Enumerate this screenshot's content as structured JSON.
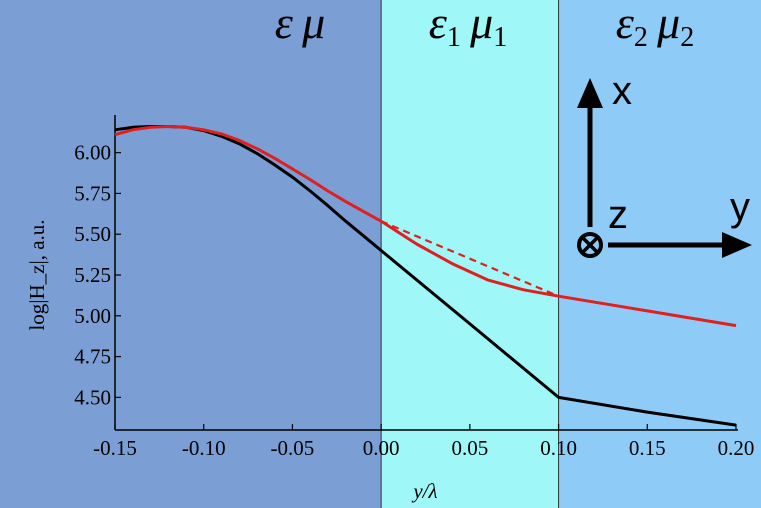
{
  "chart_data": {
    "type": "line",
    "xlabel": "y/λ",
    "ylabel": "log|H_z|, a.u.",
    "xlim": [
      -0.15,
      0.2
    ],
    "ylim": [
      4.3,
      6.2
    ],
    "x_ticks": [
      "-0.15",
      "-0.10",
      "-0.05",
      "0.00",
      "0.05",
      "0.10",
      "0.15",
      "0.20"
    ],
    "y_ticks": [
      "4.50",
      "4.75",
      "5.00",
      "5.25",
      "5.50",
      "5.75",
      "6.00"
    ],
    "regions": [
      {
        "x_from": -0.15,
        "x_to": 0.0,
        "label_main": "ε μ",
        "sub": "",
        "color": "#7b9ed4"
      },
      {
        "x_from": 0.0,
        "x_to": 0.1,
        "label_main": "ε μ",
        "sub": "1",
        "color": "#9ff7f7"
      },
      {
        "x_from": 0.1,
        "x_to": 0.2,
        "label_main": "ε μ",
        "sub": "2",
        "color": "#8ecbf7"
      }
    ],
    "series": [
      {
        "color": "#000000",
        "style": "solid",
        "x": [
          -0.15,
          -0.14,
          -0.13,
          -0.12,
          -0.11,
          -0.1,
          -0.09,
          -0.08,
          -0.07,
          -0.06,
          -0.05,
          -0.04,
          -0.03,
          -0.02,
          -0.01,
          0.0,
          0.05,
          0.1,
          0.15,
          0.2
        ],
        "y": [
          6.14,
          6.155,
          6.16,
          6.16,
          6.155,
          6.135,
          6.1,
          6.055,
          5.995,
          5.925,
          5.85,
          5.765,
          5.675,
          5.58,
          5.49,
          5.4,
          4.95,
          4.5,
          4.41,
          4.33
        ]
      },
      {
        "color": "#e02020",
        "style": "solid",
        "x": [
          -0.15,
          -0.14,
          -0.13,
          -0.12,
          -0.11,
          -0.1,
          -0.09,
          -0.08,
          -0.07,
          -0.06,
          -0.05,
          -0.04,
          -0.03,
          -0.02,
          -0.01,
          0.0,
          0.02,
          0.04,
          0.06,
          0.08,
          0.1,
          0.15,
          0.2
        ],
        "y": [
          6.11,
          6.14,
          6.155,
          6.16,
          6.155,
          6.14,
          6.115,
          6.075,
          6.025,
          5.965,
          5.9,
          5.835,
          5.765,
          5.7,
          5.64,
          5.58,
          5.44,
          5.32,
          5.22,
          5.16,
          5.12,
          5.03,
          4.94
        ]
      },
      {
        "color": "#e02020",
        "style": "dashed",
        "x": [
          0.0,
          0.1
        ],
        "y": [
          5.58,
          5.12
        ]
      }
    ]
  },
  "coordinate_axes": {
    "x_label": "x",
    "y_label": "y",
    "z_label": "z",
    "z_symbol": "⊗"
  }
}
